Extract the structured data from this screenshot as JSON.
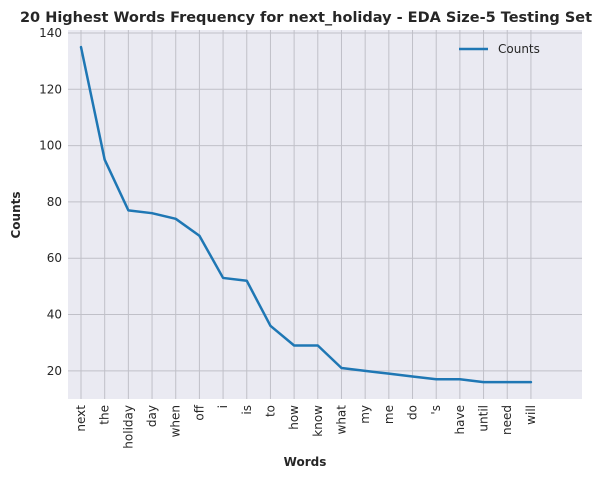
{
  "chart_data": {
    "type": "line",
    "title": "20 Highest Words Frequency for next_holiday - EDA Size-5 Testing Set",
    "xlabel": "Words",
    "ylabel": "Counts",
    "categories": [
      "next",
      "the",
      "holiday",
      "day",
      "when",
      "off",
      "i",
      "is",
      "to",
      "how",
      "know",
      "what",
      "my",
      "me",
      "do",
      "'s",
      "have",
      "until",
      "need",
      "will"
    ],
    "series": [
      {
        "name": "Counts",
        "values": [
          135,
          95,
          77,
          76,
          74,
          68,
          53,
          52,
          36,
          29,
          29,
          21,
          20,
          19,
          18,
          17,
          17,
          16,
          16,
          16
        ]
      }
    ],
    "ylim": [
      10,
      140
    ],
    "yticks": [
      20,
      40,
      60,
      80,
      100,
      120,
      140
    ],
    "grid": true,
    "legend_position": "top-right",
    "colors": {
      "line": "#1f77b4",
      "plot_background": "#eaeaf2",
      "grid": "#c0c0c8"
    }
  }
}
